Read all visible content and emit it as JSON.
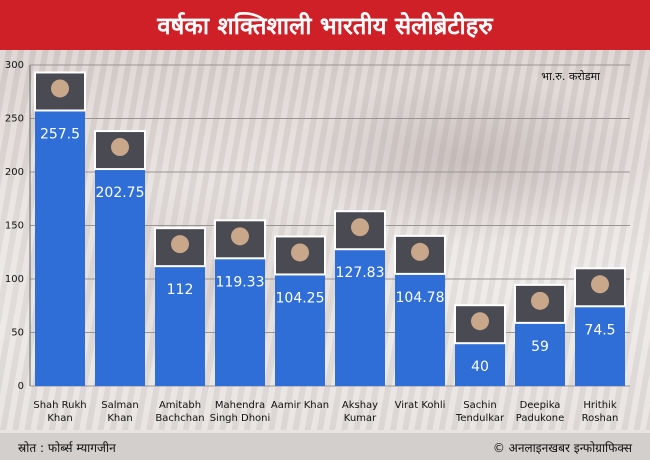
{
  "header": {
    "title": "वर्षका शक्तिशाली भारतीय सेलीब्रेटीहरु"
  },
  "footer": {
    "source": "स्रोत : फोर्ब्स म्यागजीन",
    "credit": "© अनलाइनखबर इन्फोग्राफिक्स"
  },
  "chart_data": {
    "type": "bar",
    "unit_label": "भा.रु. करोडमा",
    "categories": [
      [
        "Shah Rukh",
        "Khan"
      ],
      [
        "Salman",
        "Khan"
      ],
      [
        "Amitabh",
        "Bachchan"
      ],
      [
        "Mahendra",
        "Singh Dhoni"
      ],
      [
        "Aamir Khan"
      ],
      [
        "Akshay",
        "Kumar"
      ],
      [
        "Virat Kohli"
      ],
      [
        "Sachin",
        "Tendulkar"
      ],
      [
        "Deepika",
        "Padukone"
      ],
      [
        "Hrithik",
        "Roshan"
      ]
    ],
    "values": [
      257.5,
      202.75,
      112,
      119.33,
      104.25,
      127.83,
      104.78,
      40,
      59,
      74.5
    ],
    "value_labels": [
      "257.5",
      "202.75",
      "112",
      "119.33",
      "104.25",
      "127.83",
      "104.78",
      "40",
      "59",
      "74.5"
    ],
    "ylim": [
      0,
      300
    ],
    "yticks": [
      0,
      50,
      100,
      150,
      200,
      250,
      300
    ],
    "grid": true,
    "colors": {
      "bar": "#2f6ed6",
      "header": "#cf2027"
    }
  }
}
